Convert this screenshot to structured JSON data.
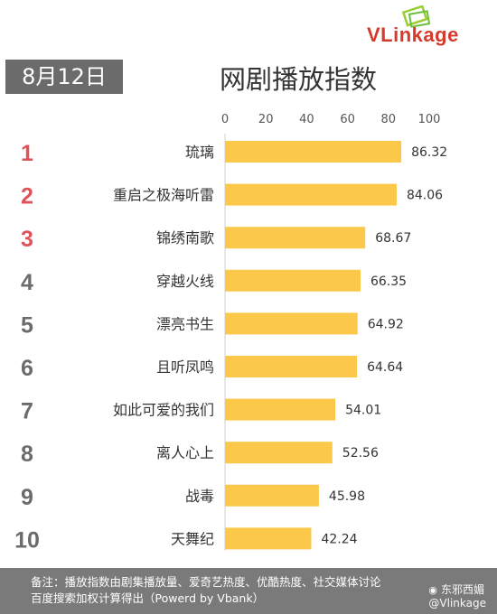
{
  "header": {
    "date": "8月12日",
    "title": "网剧播放指数",
    "logo_text": "VLinkage"
  },
  "colors": {
    "bar": "#fcc84a",
    "rank_top": "#e0525a",
    "rank_rest": "#6b6b6b",
    "footer_bg": "#7a7a7a"
  },
  "chart_data": {
    "type": "bar",
    "orientation": "horizontal",
    "xlim": [
      0,
      100
    ],
    "x_ticks": [
      0,
      20,
      40,
      60,
      80,
      100
    ],
    "grid": false,
    "ranks": [
      "1",
      "2",
      "3",
      "4",
      "5",
      "6",
      "7",
      "8",
      "9",
      "10"
    ],
    "categories": [
      "琉璃",
      "重启之极海听雷",
      "锦绣南歌",
      "穿越火线",
      "漂亮书生",
      "且听凤鸣",
      "如此可爱的我们",
      "离人心上",
      "战毒",
      "天舞纪"
    ],
    "values": [
      86.32,
      84.06,
      68.67,
      66.35,
      64.92,
      64.64,
      54.01,
      52.56,
      45.98,
      42.24
    ],
    "value_labels": [
      "86.32",
      "84.06",
      "68.67",
      "66.35",
      "64.92",
      "64.64",
      "54.01",
      "52.56",
      "45.98",
      "42.24"
    ]
  },
  "footer": {
    "line1": "备注：播放指数由剧集播放量、爱奇艺热度、优酷热度、社交媒体讨论",
    "line2": "百度搜索加权计算得出（Powerd by Vbank）"
  },
  "watermark": {
    "line1": "东邪西媚",
    "line2": "@Vlinkage",
    "icon": "weibo-icon"
  }
}
